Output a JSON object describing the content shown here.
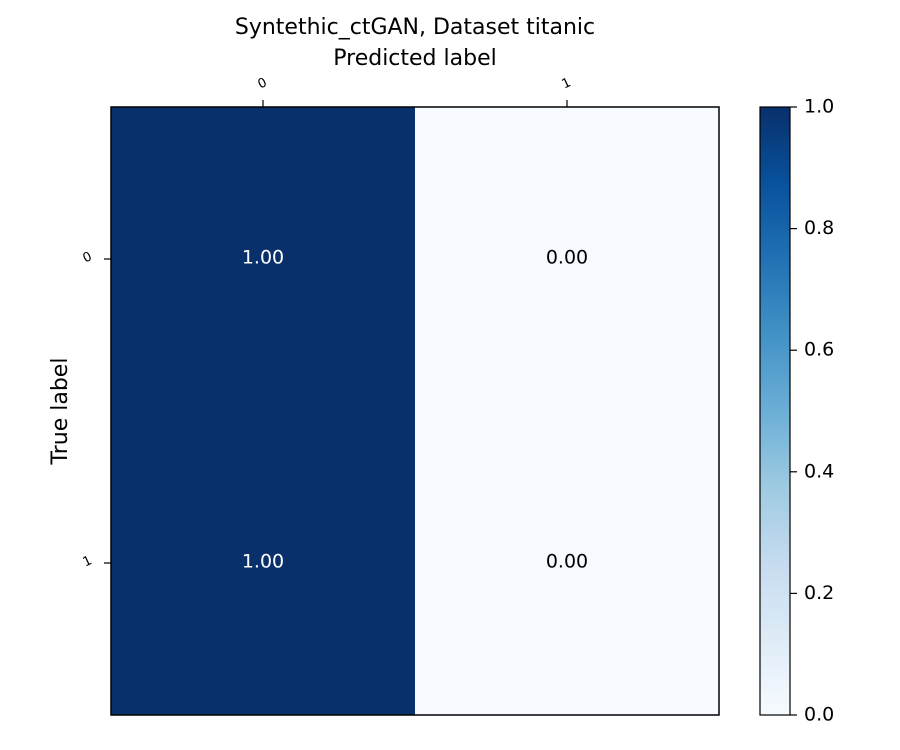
{
  "chart_data": {
    "type": "heatmap",
    "title": "Syntethic_ctGAN, Dataset titanic",
    "xlabel": "Predicted label",
    "ylabel": "True label",
    "x_categories": [
      "0",
      "1"
    ],
    "y_categories": [
      "0",
      "1"
    ],
    "values": [
      [
        1.0,
        0.0
      ],
      [
        1.0,
        0.0
      ]
    ],
    "cell_labels": [
      [
        "1.00",
        "0.00"
      ],
      [
        "1.00",
        "0.00"
      ]
    ],
    "colormap": "Blues",
    "color_range": [
      0.0,
      1.0
    ],
    "colorbar_ticks": [
      "0.0",
      "0.2",
      "0.4",
      "0.6",
      "0.8",
      "1.0"
    ],
    "colors": {
      "low": "#f7fbff",
      "high": "#08306b",
      "text_on_dark": "#ffffff",
      "text_on_light": "#000000"
    }
  }
}
